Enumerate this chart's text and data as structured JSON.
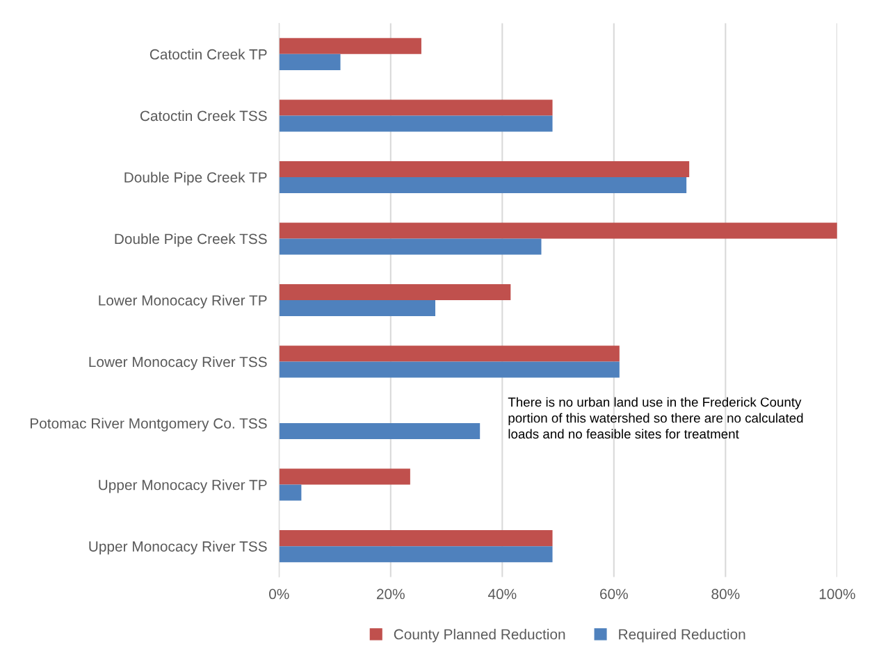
{
  "chart_data": {
    "type": "bar",
    "orientation": "horizontal",
    "categories": [
      "Catoctin Creek TP",
      "Catoctin Creek TSS",
      "Double Pipe Creek TP",
      "Double Pipe Creek TSS",
      "Lower Monocacy River TP",
      "Lower Monocacy River TSS",
      "Potomac River Montgomery Co. TSS",
      "Upper Monocacy River TP",
      "Upper Monocacy River TSS"
    ],
    "series": [
      {
        "name": "County Planned Reduction",
        "color": "#c0504d",
        "values": [
          25.5,
          49,
          73.5,
          100,
          41.5,
          61,
          null,
          23.5,
          49
        ]
      },
      {
        "name": "Required Reduction",
        "color": "#4f81bd",
        "values": [
          11,
          49,
          73,
          47,
          28,
          61,
          36,
          4,
          49
        ]
      }
    ],
    "xlim": [
      0,
      100
    ],
    "xticks": [
      {
        "value": 0,
        "label": "0%"
      },
      {
        "value": 20,
        "label": "20%"
      },
      {
        "value": 40,
        "label": "40%"
      },
      {
        "value": 60,
        "label": "60%"
      },
      {
        "value": 80,
        "label": "80%"
      },
      {
        "value": 100,
        "label": "100%"
      }
    ],
    "grid": "x",
    "legend": "bottom",
    "annotations": [
      "There is no urban land use in the Frederick County\nportion of this watershed so there are no calculated\nloads and no feasible sites for treatment"
    ]
  }
}
